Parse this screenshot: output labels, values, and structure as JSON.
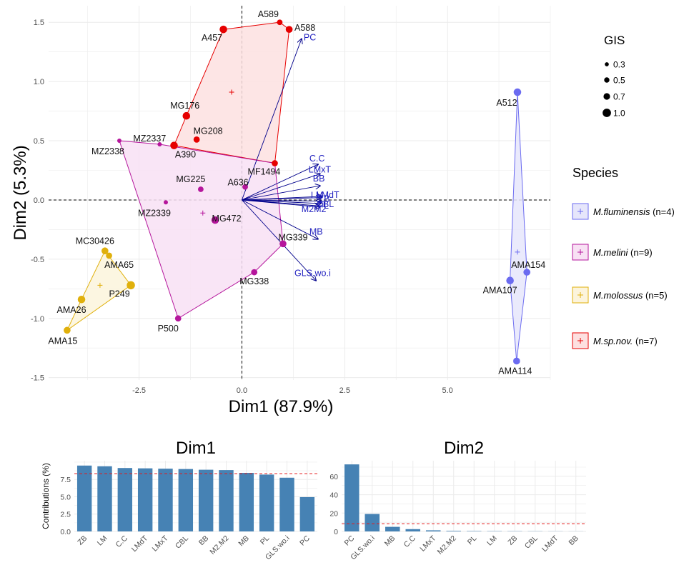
{
  "chart_data": [
    {
      "type": "scatter",
      "xlabel": "Dim1 (87.9%)",
      "ylabel": "Dim2 (5.3%)",
      "xlim": [
        -4.7,
        7.5
      ],
      "ylim": [
        -1.52,
        1.64
      ],
      "xticks": [
        -2.5,
        0.0,
        2.5,
        5.0
      ],
      "xtick_labels": [
        "-2.5",
        "0.0",
        "2.5",
        "5.0"
      ],
      "yticks": [
        -1.5,
        -1.0,
        -0.5,
        0.0,
        0.5,
        1.0,
        1.5
      ],
      "ytick_labels": [
        "-1.5",
        "-1.0",
        "-0.5",
        "0.0",
        "0.5",
        "1.0",
        "1.5"
      ],
      "grid": true,
      "size_legend": {
        "title": "GIS",
        "entries": [
          {
            "label": "0.3",
            "value": 0.3
          },
          {
            "label": "0.5",
            "value": 0.5
          },
          {
            "label": "0.7",
            "value": 0.7
          },
          {
            "label": "1.0",
            "value": 1.0
          }
        ]
      },
      "species_legend": {
        "title": "Species",
        "entries": [
          {
            "key": "flu",
            "name": "M.fluminensis",
            "count": "(n=4)",
            "color": "#6b6bf0",
            "fill": "#e6e6fb"
          },
          {
            "key": "mel",
            "name": "M.melini",
            "count": "(n=9)",
            "color": "#b5169c",
            "fill": "#f8e1f4"
          },
          {
            "key": "mol",
            "name": "M.molossus",
            "count": "(n=5)",
            "color": "#e0b00c",
            "fill": "#fcf4dc"
          },
          {
            "key": "sp",
            "name": "M.sp.nov.",
            "count": "(n=7)",
            "color": "#e60000",
            "fill": "#fde0e0"
          }
        ]
      },
      "series": [
        {
          "key": "sp",
          "hull": [
            "A457",
            "A589",
            "A588",
            "MF1494",
            "A390",
            "MG176"
          ],
          "centroid": [
            -0.25,
            0.91
          ],
          "points": [
            {
              "label": "A589",
              "x": 0.92,
              "y": 1.5,
              "gis": 0.5
            },
            {
              "label": "A588",
              "x": 1.15,
              "y": 1.44,
              "gis": 0.7
            },
            {
              "label": "A457",
              "x": -0.45,
              "y": 1.44,
              "gis": 0.8
            },
            {
              "label": "MG176",
              "x": -1.35,
              "y": 0.71,
              "gis": 0.8
            },
            {
              "label": "MG208",
              "x": -1.1,
              "y": 0.51,
              "gis": 0.6
            },
            {
              "label": "A390",
              "x": -1.65,
              "y": 0.46,
              "gis": 0.8
            },
            {
              "label": "MF1494",
              "x": 0.8,
              "y": 0.31,
              "gis": 0.6
            }
          ]
        },
        {
          "key": "mel",
          "hull": [
            "MZ2338",
            "MZ2337",
            "MF1494",
            "MG339",
            "MG338",
            "P500"
          ],
          "centroid": [
            -0.95,
            -0.11
          ],
          "points": [
            {
              "label": "MZ2338",
              "x": -2.98,
              "y": 0.5,
              "gis": 0.3
            },
            {
              "label": "MZ2337",
              "x": -2.0,
              "y": 0.47,
              "gis": 0.3
            },
            {
              "label": "MG225",
              "x": -1.0,
              "y": 0.09,
              "gis": 0.5
            },
            {
              "label": "A636",
              "x": 0.08,
              "y": 0.11,
              "gis": 0.5
            },
            {
              "label": "MZ2339",
              "x": -1.85,
              "y": -0.02,
              "gis": 0.3
            },
            {
              "label": "MG472",
              "x": -0.65,
              "y": -0.17,
              "gis": 0.8
            },
            {
              "label": "MG339",
              "x": 1.0,
              "y": -0.37,
              "gis": 0.7
            },
            {
              "label": "MG338",
              "x": 0.3,
              "y": -0.61,
              "gis": 0.6
            },
            {
              "label": "P500",
              "x": -1.55,
              "y": -1.0,
              "gis": 0.6
            }
          ]
        },
        {
          "key": "mol",
          "hull": [
            "MC30426",
            "P249",
            "AMA15",
            "AMA26"
          ],
          "centroid": [
            -3.45,
            -0.72
          ],
          "points": [
            {
              "label": "MC30426",
              "x": -3.33,
              "y": -0.43,
              "gis": 0.7
            },
            {
              "label": "AMA65",
              "x": -3.23,
              "y": -0.47,
              "gis": 0.6
            },
            {
              "label": "P249",
              "x": -2.7,
              "y": -0.72,
              "gis": 0.9
            },
            {
              "label": "AMA26",
              "x": -3.9,
              "y": -0.84,
              "gis": 0.8
            },
            {
              "label": "AMA15",
              "x": -4.25,
              "y": -1.1,
              "gis": 0.7
            }
          ]
        },
        {
          "key": "flu",
          "hull": [
            "A512",
            "AMA154",
            "AMA114",
            "AMA107"
          ],
          "centroid": [
            6.7,
            -0.44
          ],
          "points": [
            {
              "label": "A512",
              "x": 6.7,
              "y": 0.91,
              "gis": 0.8
            },
            {
              "label": "AMA154",
              "x": 6.93,
              "y": -0.61,
              "gis": 0.7
            },
            {
              "label": "AMA107",
              "x": 6.52,
              "y": -0.68,
              "gis": 0.8
            },
            {
              "label": "AMA114",
              "x": 6.68,
              "y": -1.36,
              "gis": 0.7
            }
          ]
        }
      ],
      "variables": [
        {
          "name": "PC",
          "x": 1.45,
          "y": 1.36
        },
        {
          "name": "C.C",
          "x": 1.85,
          "y": 0.3
        },
        {
          "name": "LMxT",
          "x": 1.9,
          "y": 0.22
        },
        {
          "name": "BB",
          "x": 1.9,
          "y": 0.12
        },
        {
          "name": "LMdT",
          "x": 1.95,
          "y": 0.03
        },
        {
          "name": "LM",
          "x": 1.92,
          "y": 0.02
        },
        {
          "name": "ZB",
          "x": 1.93,
          "y": -0.01
        },
        {
          "name": "M2M2",
          "x": 1.9,
          "y": -0.06
        },
        {
          "name": "CBL",
          "x": 1.92,
          "y": -0.03
        },
        {
          "name": "PL",
          "x": 1.88,
          "y": -0.05
        },
        {
          "name": "MB",
          "x": 1.85,
          "y": -0.33
        },
        {
          "name": "GLS.wo.i",
          "x": 1.8,
          "y": -0.68
        }
      ]
    },
    {
      "type": "bar",
      "title": "Dim1",
      "ylabel": "Contributions (%)",
      "categories": [
        "ZB",
        "LM",
        "C.C",
        "LMdT",
        "LMxT",
        "CBL",
        "BB",
        "M2.M2",
        "MB",
        "PL",
        "GLS.wo.i",
        "PC"
      ],
      "values": [
        9.5,
        9.4,
        9.15,
        9.1,
        9.05,
        9.0,
        8.9,
        8.85,
        8.45,
        8.2,
        7.75,
        4.95
      ],
      "reference_line": 8.33,
      "yticks": [
        0,
        2.5,
        5.0,
        7.5
      ],
      "ytick_labels": [
        "0.0",
        "2.5",
        "5.0",
        "7.5"
      ],
      "ylim": [
        0,
        10.2
      ],
      "color": "#4682b4"
    },
    {
      "type": "bar",
      "title": "Dim2",
      "ylabel": "",
      "categories": [
        "PC",
        "GLS.wo.i",
        "MB",
        "C.C",
        "LMxT",
        "M2.M2",
        "PL",
        "LM",
        "ZB",
        "CBL",
        "LMdT",
        "BB"
      ],
      "values": [
        73,
        19,
        5,
        2.5,
        1.2,
        0.6,
        0.4,
        0.3,
        0.25,
        0.2,
        0.15,
        0.1
      ],
      "reference_line": 8.33,
      "yticks": [
        0,
        20,
        40,
        60
      ],
      "ytick_labels": [
        "0",
        "20",
        "40",
        "60"
      ],
      "ylim": [
        0,
        77
      ],
      "color": "#4682b4"
    }
  ]
}
